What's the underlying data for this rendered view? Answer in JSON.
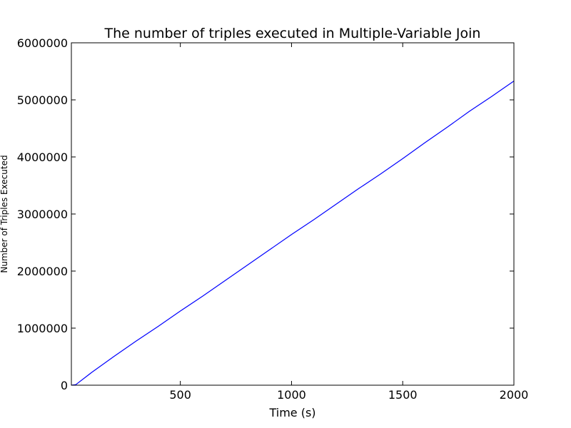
{
  "chart_data": {
    "type": "line",
    "title": "The number of triples executed in Multiple-Variable Join",
    "xlabel": "Time (s)",
    "ylabel": "Number of Triples Executed",
    "xlim": [
      10,
      2000
    ],
    "ylim": [
      0,
      6000000
    ],
    "xticks": [
      500,
      1000,
      1500,
      2000
    ],
    "xtick_labels": [
      "500",
      "1000",
      "1500",
      "2000"
    ],
    "yticks": [
      0,
      1000000,
      2000000,
      3000000,
      4000000,
      5000000,
      6000000
    ],
    "ytick_labels": [
      "0",
      "1000000",
      "2000000",
      "3000000",
      "4000000",
      "5000000",
      "6000000"
    ],
    "grid": false,
    "series": [
      {
        "color": "#0000ff",
        "x": [
          10,
          30,
          100,
          200,
          300,
          400,
          500,
          600,
          700,
          800,
          900,
          1000,
          1100,
          1200,
          1300,
          1400,
          1500,
          1600,
          1700,
          1800,
          1900,
          2000
        ],
        "y": [
          0,
          10000,
          220000,
          500000,
          770000,
          1030000,
          1300000,
          1560000,
          1830000,
          2100000,
          2370000,
          2640000,
          2900000,
          3170000,
          3440000,
          3700000,
          3970000,
          4250000,
          4520000,
          4800000,
          5060000,
          5330000
        ]
      }
    ]
  }
}
